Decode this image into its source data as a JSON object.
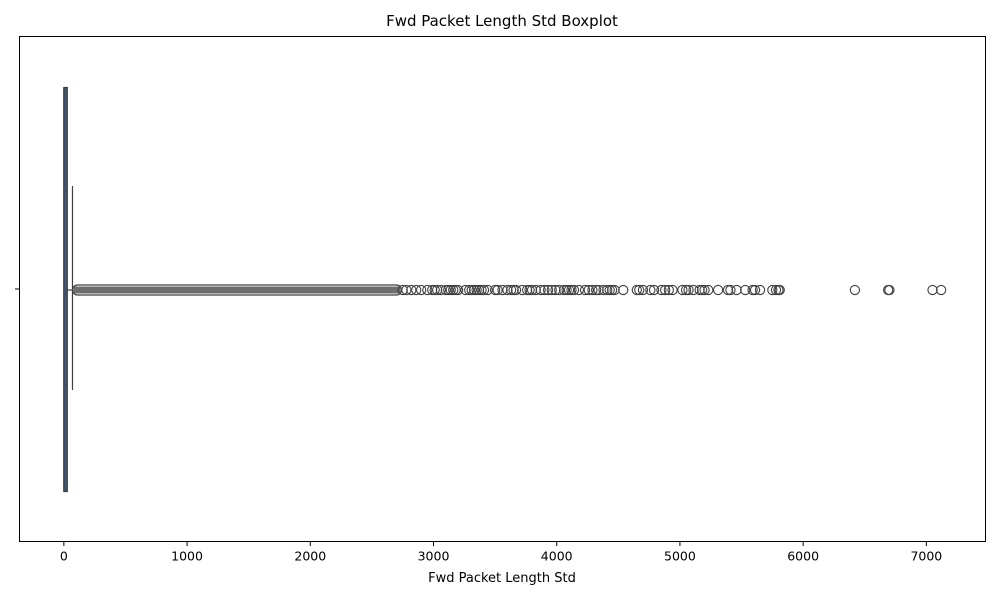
{
  "chart_data": {
    "type": "boxplot",
    "orientation": "horizontal",
    "title": "Fwd Packet Length Std Boxplot",
    "xlabel": "Fwd Packet Length Std",
    "ylabel": "",
    "xlim": [
      -360,
      7480
    ],
    "xticks": [
      0,
      1000,
      2000,
      3000,
      4000,
      5000,
      6000,
      7000
    ],
    "xtick_labels": [
      "0",
      "1000",
      "2000",
      "3000",
      "4000",
      "5000",
      "6000",
      "7000"
    ],
    "grid": false,
    "series": [
      {
        "box_color": "#3b5a78",
        "box": {
          "q1": 0,
          "median": 0,
          "q3": 28,
          "whisker_low": 0,
          "whisker_high": 70
        },
        "outlier_dense_range": [
          70,
          2740
        ],
        "outliers": [
          2750,
          2780,
          2820,
          2860,
          2900,
          2950,
          2990,
          3010,
          3030,
          3060,
          3100,
          3120,
          3140,
          3160,
          3180,
          3200,
          3260,
          3290,
          3310,
          3330,
          3350,
          3370,
          3390,
          3410,
          3440,
          3500,
          3520,
          3560,
          3600,
          3630,
          3650,
          3670,
          3720,
          3760,
          3780,
          3800,
          3830,
          3870,
          3900,
          3930,
          3960,
          3990,
          4020,
          4060,
          4080,
          4100,
          4120,
          4140,
          4180,
          4230,
          4260,
          4290,
          4320,
          4340,
          4380,
          4410,
          4430,
          4450,
          4470,
          4540,
          4650,
          4670,
          4700,
          4760,
          4790,
          4850,
          4880,
          4910,
          4940,
          5020,
          5050,
          5070,
          5110,
          5160,
          5180,
          5200,
          5230,
          5310,
          5390,
          5410,
          5460,
          5530,
          5590,
          5610,
          5650,
          5750,
          5780,
          5800,
          5810,
          6420,
          6690,
          6700,
          7050,
          7120
        ]
      }
    ]
  }
}
